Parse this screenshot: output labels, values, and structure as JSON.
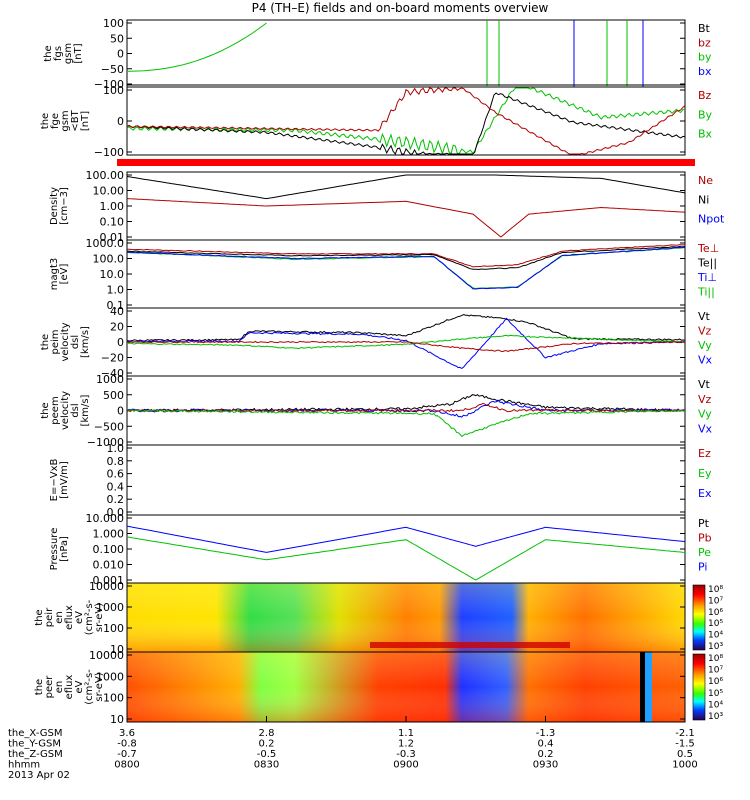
{
  "title": "P4 (TH–E) fields and on-board moments overview",
  "colors": {
    "black": "#000000",
    "red": "#b00000",
    "green": "#00c000",
    "blue": "#0000ff",
    "bright_red": "#ff0000"
  },
  "panels": [
    {
      "id": "fgs",
      "ylabel": [
        "the",
        "fgs",
        "gsm",
        "[nT]"
      ],
      "ticks": [
        "100",
        "50",
        "0",
        "−50",
        "−100"
      ],
      "legend": [
        {
          "text": "Bt",
          "color": "#000000"
        },
        {
          "text": "bz",
          "color": "#b00000"
        },
        {
          "text": "by",
          "color": "#00c000"
        },
        {
          "text": "bx",
          "color": "#0000ff"
        }
      ]
    },
    {
      "id": "fge",
      "ylabel": [
        "the",
        "fge",
        "gsm",
        "<BT",
        "[nT]"
      ],
      "ticks": [
        "100",
        "0",
        "−100"
      ],
      "legend": [
        {
          "text": "Bz",
          "color": "#b00000"
        },
        {
          "text": "By",
          "color": "#00c000"
        },
        {
          "text": "Bx",
          "color": "#00c000"
        }
      ]
    },
    {
      "id": "density",
      "ylabel": [
        "Density",
        "[cm−3]"
      ],
      "ticks": [
        "100.00",
        "10.00",
        "1.00",
        "0.10",
        "0.01"
      ],
      "legend": [
        {
          "text": "Ne",
          "color": "#b00000"
        },
        {
          "text": "Ni",
          "color": "#000000"
        },
        {
          "text": "Npot",
          "color": "#0000ff"
        }
      ]
    },
    {
      "id": "temp",
      "ylabel": [
        "magt3",
        "[eV]"
      ],
      "ticks": [
        "1000.0",
        "100.0",
        "10.0",
        "1.0",
        "0.1"
      ],
      "legend": [
        {
          "text": "Te⊥",
          "color": "#b00000"
        },
        {
          "text": "Te||",
          "color": "#000000"
        },
        {
          "text": "Ti⊥",
          "color": "#0000ff"
        },
        {
          "text": "Ti||",
          "color": "#00c000"
        }
      ]
    },
    {
      "id": "peim",
      "ylabel": [
        "the",
        "peim",
        "velocity",
        "dsl",
        "[km/s]"
      ],
      "ticks": [
        "40",
        "20",
        "0",
        "−20",
        "−40"
      ],
      "legend": [
        {
          "text": "Vt",
          "color": "#000000"
        },
        {
          "text": "Vz",
          "color": "#b00000"
        },
        {
          "text": "Vy",
          "color": "#00c000"
        },
        {
          "text": "Vx",
          "color": "#0000ff"
        }
      ]
    },
    {
      "id": "peem",
      "ylabel": [
        "the",
        "peem",
        "velocity",
        "dsl",
        "[km/s]"
      ],
      "ticks": [
        "1000",
        "500",
        "0",
        "−500",
        "−1000"
      ],
      "legend": [
        {
          "text": "Vt",
          "color": "#000000"
        },
        {
          "text": "Vz",
          "color": "#b00000"
        },
        {
          "text": "Vy",
          "color": "#00c000"
        },
        {
          "text": "Vx",
          "color": "#0000ff"
        }
      ]
    },
    {
      "id": "efield",
      "ylabel": [
        "E=−VxB",
        "[mV/m]"
      ],
      "ticks": [
        "1.0",
        "0.8",
        "0.6",
        "0.4",
        "0.2",
        "0.0"
      ],
      "legend": [
        {
          "text": "Ez",
          "color": "#b00000"
        },
        {
          "text": "Ey",
          "color": "#00c000"
        },
        {
          "text": "Ex",
          "color": "#0000ff"
        }
      ]
    },
    {
      "id": "pressure",
      "ylabel": [
        "Pressure",
        "[nPa]"
      ],
      "ticks": [
        "10.000",
        "1.000",
        "0.100",
        "0.010",
        "0.001"
      ],
      "legend": [
        {
          "text": "Pt",
          "color": "#000000"
        },
        {
          "text": "Pb",
          "color": "#b00000"
        },
        {
          "text": "Pe",
          "color": "#00c000"
        },
        {
          "text": "Pi",
          "color": "#0000ff"
        }
      ]
    },
    {
      "id": "peir",
      "ylabel": [
        "the",
        "peir",
        "en",
        "eflux",
        "eV",
        "(cm²-s-",
        "sr-eV)"
      ],
      "ticks": [
        "10000",
        "1000",
        "100",
        "10"
      ],
      "colorbar": [
        "10⁸",
        "10⁷",
        "10⁶",
        "10⁵",
        "10⁴",
        "10³"
      ]
    },
    {
      "id": "peer",
      "ylabel": [
        "the",
        "peer",
        "en",
        "eflux",
        "eV",
        "(cm²-s-",
        "sr-eV)"
      ],
      "ticks": [
        "10000",
        "1000",
        "100",
        "10"
      ],
      "colorbar": [
        "10⁸",
        "10⁷",
        "10⁶",
        "10⁵",
        "10⁴",
        "10³"
      ]
    }
  ],
  "axis": {
    "row_labels": [
      "the_X-GSM",
      "the_Y-GSM",
      "the_Z-GSM",
      "hhmm",
      "2013 Apr 02"
    ],
    "columns": [
      [
        "3.6",
        "-0.8",
        "-0.7",
        "0800"
      ],
      [
        "2.8",
        "0.2",
        "-0.5",
        "0830"
      ],
      [
        "1.1",
        "1.2",
        "-0.3",
        "0900"
      ],
      [
        "-1.3",
        "0.4",
        "0.2",
        "0930"
      ],
      [
        "-2.1",
        "-1.5",
        "0.5",
        "1000"
      ]
    ]
  },
  "chart_data": {
    "type": "line",
    "title": "P4 (TH–E) fields and on-board moments overview",
    "x": [
      "0800",
      "0830",
      "0900",
      "0930",
      "1000"
    ],
    "panels": [
      {
        "ylabel": "the fgs gsm [nT]",
        "ylim": [
          -100,
          100
        ],
        "series": [
          {
            "name": "by",
            "x": [
              "0800",
              "0815",
              "0830"
            ],
            "values": [
              -58,
              -40,
              100
            ]
          }
        ]
      },
      {
        "ylabel": "Density [cm-3]",
        "scale": "log",
        "ylim": [
          0.01,
          100
        ],
        "series": [
          {
            "name": "Ni",
            "x": [
              "0800",
              "0830",
              "0900",
              "0915",
              "0930",
              "1000"
            ],
            "values": [
              80,
              3,
              80,
              100,
              100,
              7
            ]
          },
          {
            "name": "Ne",
            "x": [
              "0800",
              "0830",
              "0900",
              "0915",
              "0930",
              "1000"
            ],
            "values": [
              3,
              1,
              2,
              0.01,
              0.8,
              0.4
            ]
          }
        ]
      },
      {
        "ylabel": "magt3 [eV]",
        "scale": "log",
        "ylim": [
          0.1,
          1000
        ],
        "series": [
          {
            "name": "Te⊥",
            "x": [
              "0800",
              "0830",
              "0900",
              "0915",
              "0930",
              "1000"
            ],
            "values": [
              400,
              200,
              200,
              30,
              300,
              800
            ]
          },
          {
            "name": "Ti⊥",
            "x": [
              "0800",
              "0830",
              "0900",
              "0915",
              "0930",
              "1000"
            ],
            "values": [
              300,
              100,
              150,
              1.2,
              150,
              500
            ]
          }
        ]
      },
      {
        "ylabel": "Pressure [nPa]",
        "scale": "log",
        "ylim": [
          0.001,
          10
        ],
        "series": [
          {
            "name": "Pi",
            "x": [
              "0800",
              "0830",
              "0900",
              "0915",
              "0930",
              "1000"
            ],
            "values": [
              3,
              0.06,
              2.5,
              0.15,
              2.5,
              0.3
            ]
          },
          {
            "name": "Pe",
            "x": [
              "0800",
              "0830",
              "0900",
              "0915",
              "0930",
              "1000"
            ],
            "values": [
              0.6,
              0.02,
              0.4,
              0.001,
              0.4,
              0.06
            ]
          }
        ]
      }
    ]
  }
}
